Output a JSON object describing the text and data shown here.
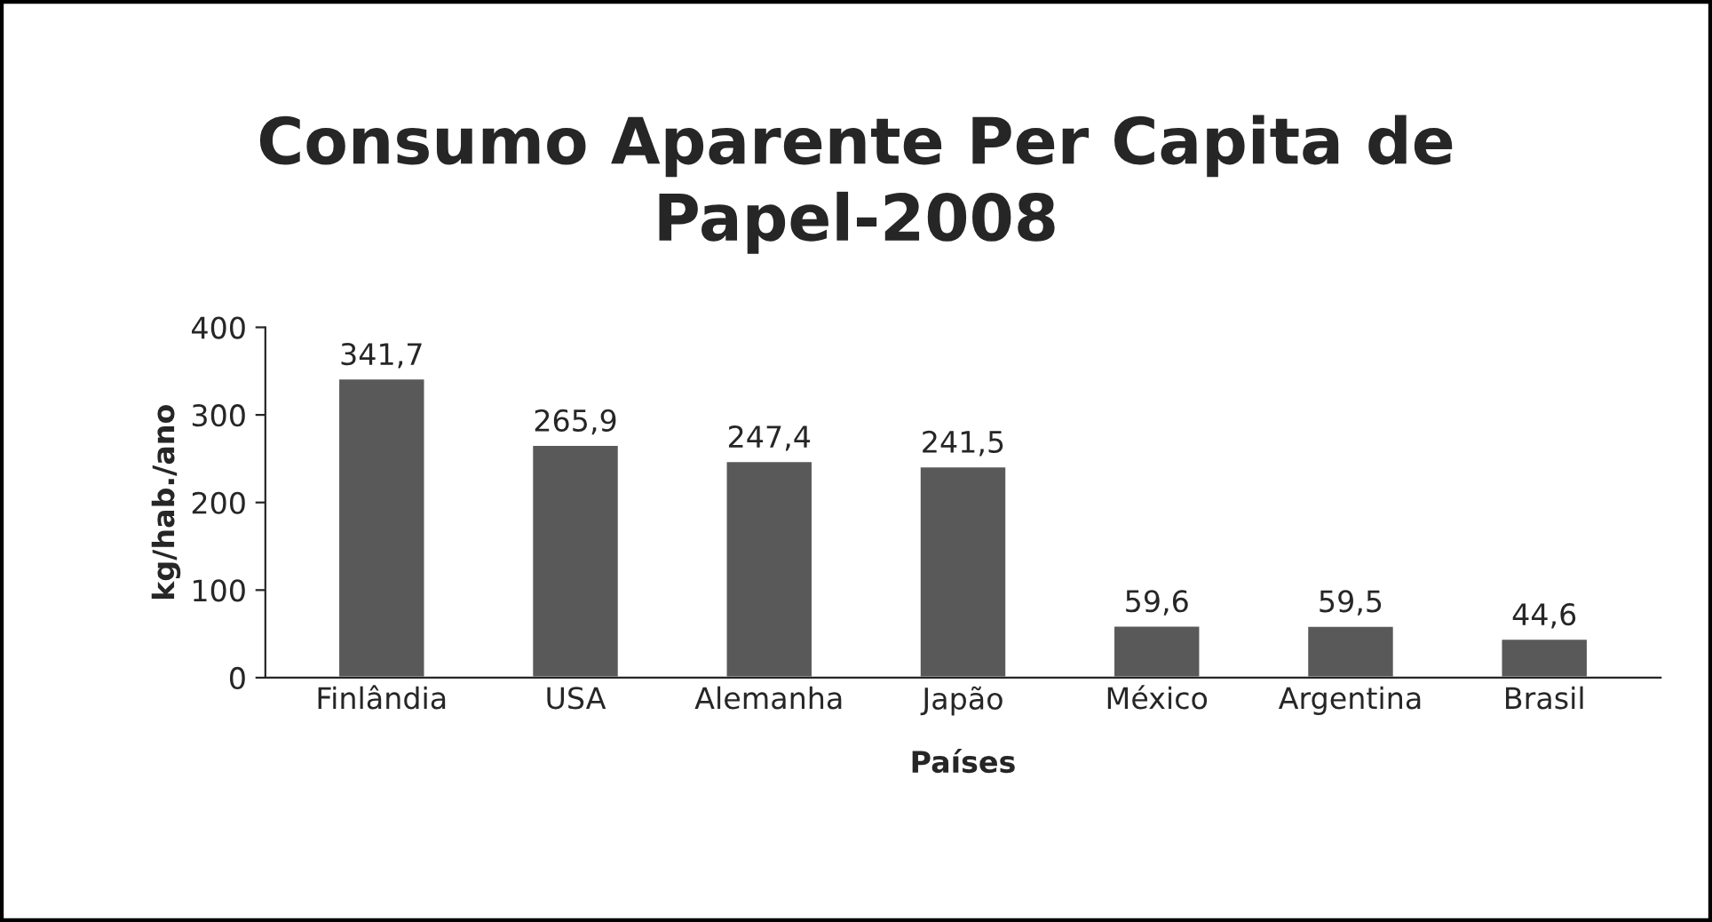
{
  "chart_data": {
    "type": "bar",
    "title": "Consumo Aparente Per Capita de Papel-2008",
    "xlabel": "Países",
    "ylabel": "kg/hab./ano",
    "categories": [
      "Finlândia",
      "USA",
      "Alemanha",
      "Japão",
      "México",
      "Argentina",
      "Brasil"
    ],
    "values": [
      341.7,
      265.9,
      247.4,
      241.5,
      59.6,
      59.5,
      44.6
    ],
    "value_labels": [
      "341,7",
      "265,9",
      "247,4",
      "241,5",
      "59,6",
      "59,5",
      "44,6"
    ],
    "color": "#595959",
    "ylim": [
      0,
      400
    ],
    "yticks": [
      0,
      100,
      200,
      300,
      400
    ],
    "grid": false,
    "legend": false
  }
}
